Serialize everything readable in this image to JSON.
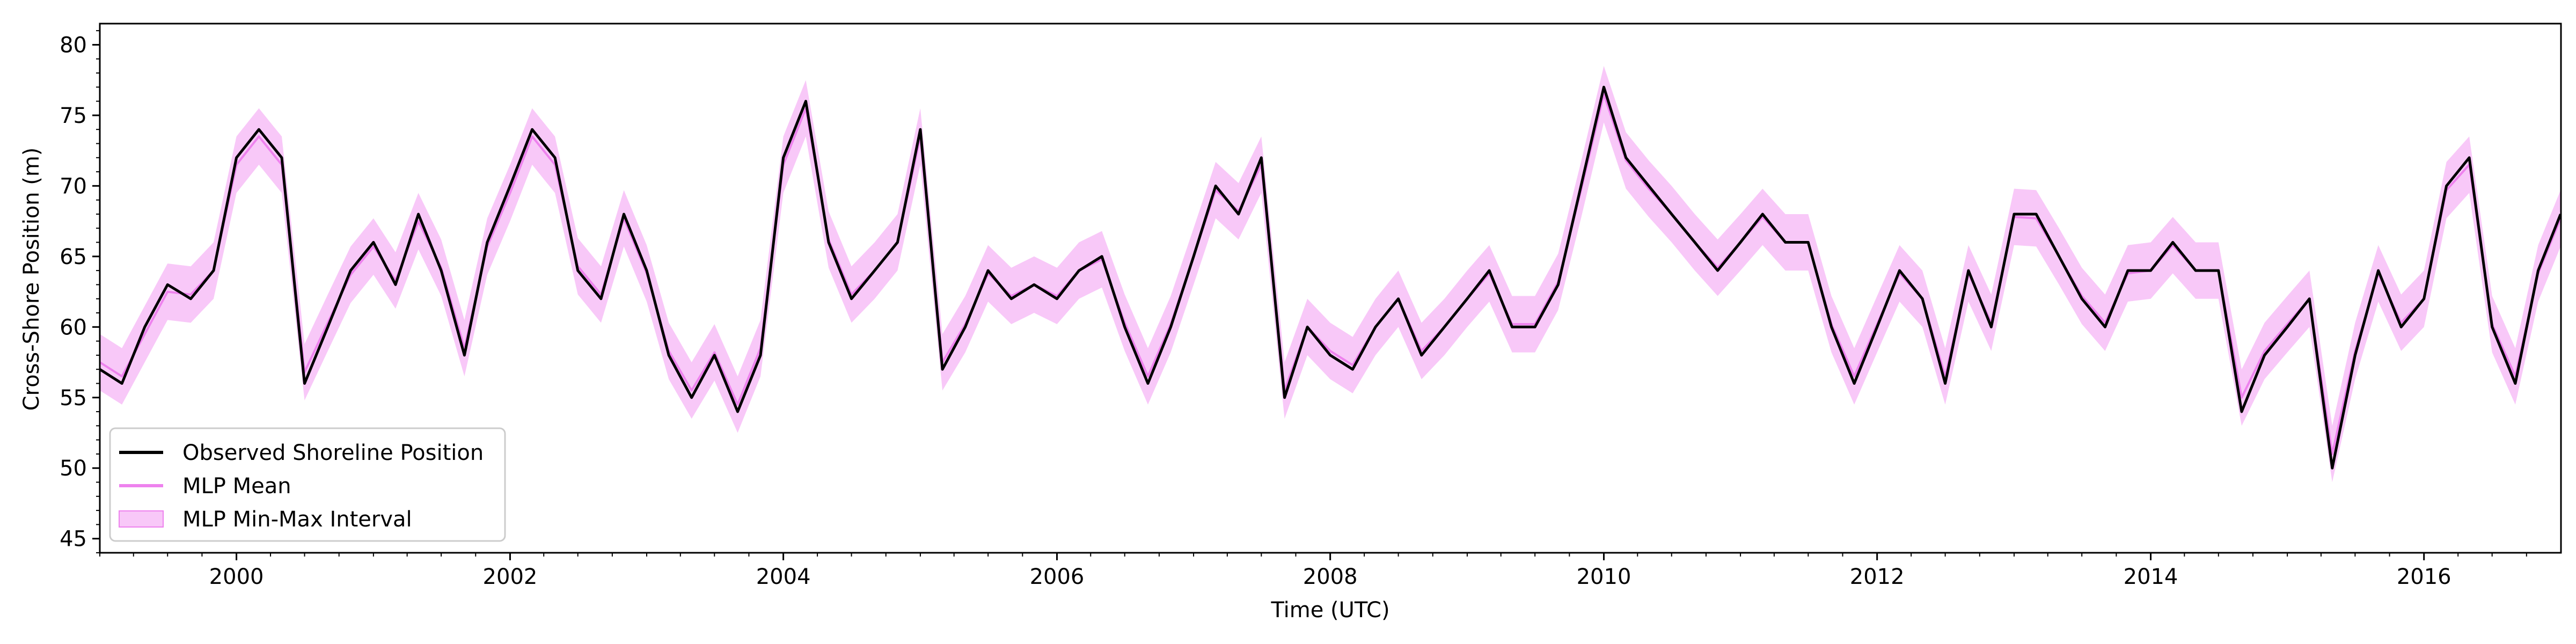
{
  "chart_data": {
    "type": "line",
    "title": "",
    "xlabel": "Time (UTC)",
    "ylabel": "Cross-Shore Position (m)",
    "xlim": [
      "1999-01-01",
      "2017-01-01"
    ],
    "ylim": [
      44,
      81.5
    ],
    "x_ticks": [
      "2000",
      "2002",
      "2004",
      "2006",
      "2008",
      "2010",
      "2012",
      "2014",
      "2016"
    ],
    "y_ticks": [
      "45",
      "50",
      "55",
      "60",
      "65",
      "70",
      "75",
      "80"
    ],
    "grid": false,
    "legend_position": "lower-left",
    "legend": {
      "observed": "Observed Shoreline Position",
      "mean": "MLP Mean",
      "interval": "MLP Min-Max Interval"
    },
    "colors": {
      "observed": "#000000",
      "mean": "#ee82ee",
      "interval_fill": "#f8c8f8",
      "interval_edge": "#ee82ee"
    },
    "x_dates": [
      "1999-01-01",
      "1999-03-01",
      "1999-05-01",
      "1999-07-01",
      "1999-09-01",
      "1999-11-01",
      "2000-01-01",
      "2000-03-01",
      "2000-05-01",
      "2000-07-01",
      "2000-09-01",
      "2000-11-01",
      "2001-01-01",
      "2001-03-01",
      "2001-05-01",
      "2001-07-01",
      "2001-09-01",
      "2001-11-01",
      "2002-01-01",
      "2002-03-01",
      "2002-05-01",
      "2002-07-01",
      "2002-09-01",
      "2002-11-01",
      "2003-01-01",
      "2003-03-01",
      "2003-05-01",
      "2003-07-01",
      "2003-09-01",
      "2003-11-01",
      "2004-01-01",
      "2004-03-01",
      "2004-05-01",
      "2004-07-01",
      "2004-09-01",
      "2004-11-01",
      "2005-01-01",
      "2005-03-01",
      "2005-05-01",
      "2005-07-01",
      "2005-09-01",
      "2005-11-01",
      "2006-01-01",
      "2006-03-01",
      "2006-05-01",
      "2006-07-01",
      "2006-09-01",
      "2006-11-01",
      "2007-01-01",
      "2007-03-01",
      "2007-05-01",
      "2007-07-01",
      "2007-09-01",
      "2007-11-01",
      "2008-01-01",
      "2008-03-01",
      "2008-05-01",
      "2008-07-01",
      "2008-09-01",
      "2008-11-01",
      "2009-01-01",
      "2009-03-01",
      "2009-05-01",
      "2009-07-01",
      "2009-09-01",
      "2009-11-01",
      "2010-01-01",
      "2010-03-01",
      "2010-05-01",
      "2010-07-01",
      "2010-09-01",
      "2010-11-01",
      "2011-01-01",
      "2011-03-01",
      "2011-05-01",
      "2011-07-01",
      "2011-09-01",
      "2011-11-01",
      "2012-01-01",
      "2012-03-01",
      "2012-05-01",
      "2012-07-01",
      "2012-09-01",
      "2012-11-01",
      "2013-01-01",
      "2013-03-01",
      "2013-05-01",
      "2013-07-01",
      "2013-09-01",
      "2013-11-01",
      "2014-01-01",
      "2014-03-01",
      "2014-05-01",
      "2014-07-01",
      "2014-09-01",
      "2014-11-01",
      "2015-01-01",
      "2015-03-01",
      "2015-05-01",
      "2015-07-01",
      "2015-09-01",
      "2015-11-01",
      "2016-01-01",
      "2016-03-01",
      "2016-05-01",
      "2016-07-01",
      "2016-09-01",
      "2016-11-01",
      "2016-12-31"
    ],
    "series": [
      {
        "name": "Observed Shoreline Position",
        "values": [
          57,
          56,
          60,
          63,
          62,
          64,
          72,
          74,
          72,
          56,
          60,
          64,
          66,
          63,
          68,
          64,
          58,
          66,
          70,
          74,
          72,
          64,
          62,
          68,
          64,
          58,
          55,
          58,
          54,
          58,
          72,
          76,
          66,
          62,
          64,
          66,
          74,
          57,
          60,
          64,
          62,
          63,
          62,
          64,
          65,
          60,
          56,
          60,
          65,
          70,
          68,
          72,
          55,
          60,
          58,
          57,
          60,
          62,
          58,
          60,
          62,
          64,
          60,
          60,
          63,
          70,
          77,
          72,
          70,
          68,
          66,
          64,
          66,
          68,
          66,
          66,
          60,
          56,
          60,
          64,
          62,
          56,
          64,
          60,
          68,
          68,
          65,
          62,
          60,
          64,
          64,
          66,
          64,
          64,
          54,
          58,
          60,
          62,
          50,
          58,
          64,
          60,
          62,
          70,
          72,
          60,
          56,
          64,
          68
        ]
      },
      {
        "name": "MLP Mean",
        "values": [
          57.5,
          56.5,
          59.5,
          62.5,
          62.3,
          64,
          71.5,
          73.5,
          71.5,
          56.8,
          60.3,
          63.7,
          65.7,
          63.3,
          67.5,
          64.2,
          58.5,
          65.7,
          69.5,
          73.5,
          71.5,
          64.3,
          62.3,
          67.7,
          63.8,
          58.3,
          55.5,
          58.2,
          54.5,
          58.5,
          71.5,
          75.5,
          66.2,
          62.3,
          64,
          66,
          73.5,
          57.5,
          60.2,
          63.8,
          62.2,
          63,
          62.2,
          64,
          64.8,
          60.3,
          56.5,
          60.2,
          65,
          69.7,
          68.2,
          71.5,
          55.5,
          60,
          58.3,
          57.3,
          60,
          62,
          58.3,
          60,
          62,
          63.8,
          60.2,
          60.2,
          63.2,
          69.7,
          76.5,
          71.8,
          69.8,
          68,
          66,
          64.2,
          66,
          67.8,
          66,
          66,
          60.2,
          56.5,
          60.2,
          63.8,
          62,
          56.5,
          63.8,
          60.3,
          67.8,
          67.7,
          65,
          62.2,
          60.3,
          63.8,
          64,
          65.8,
          64,
          64,
          55,
          58.3,
          60.2,
          62,
          51,
          58.3,
          63.8,
          60.3,
          62,
          69.7,
          71.5,
          60.2,
          56.5,
          63.8,
          67.7
        ]
      },
      {
        "name": "MLP Min-Max Interval",
        "lower": [
          55.5,
          54.5,
          57.5,
          60.5,
          60.3,
          62,
          69.5,
          71.5,
          69.5,
          54.8,
          58.3,
          61.7,
          63.7,
          61.3,
          65.5,
          62.2,
          56.5,
          63.7,
          67.5,
          71.5,
          69.5,
          62.3,
          60.3,
          65.7,
          61.8,
          56.3,
          53.5,
          56.2,
          52.5,
          56.5,
          69.5,
          73.5,
          64.2,
          60.3,
          62,
          64,
          71.5,
          55.5,
          58.2,
          61.8,
          60.2,
          61,
          60.2,
          62,
          62.8,
          58.3,
          54.5,
          58.2,
          63,
          67.7,
          66.2,
          69.5,
          53.5,
          58,
          56.3,
          55.3,
          58,
          60,
          56.3,
          58,
          60,
          61.8,
          58.2,
          58.2,
          61.2,
          67.7,
          74.5,
          69.8,
          67.8,
          66,
          64,
          62.2,
          64,
          65.8,
          64,
          64,
          58.2,
          54.5,
          58.2,
          61.8,
          60,
          54.5,
          61.8,
          58.3,
          65.8,
          65.7,
          63,
          60.2,
          58.3,
          61.8,
          62,
          63.8,
          62,
          62,
          53,
          56.3,
          58.2,
          60,
          49,
          56.3,
          61.8,
          58.3,
          60,
          67.7,
          69.5,
          58.2,
          54.5,
          61.8,
          65.7
        ],
        "upper": [
          59.5,
          58.5,
          61.5,
          64.5,
          64.3,
          66,
          73.5,
          75.5,
          73.5,
          58.8,
          62.3,
          65.7,
          67.7,
          65.3,
          69.5,
          66.2,
          60.5,
          67.7,
          71.5,
          75.5,
          73.5,
          66.3,
          64.3,
          69.7,
          65.8,
          60.3,
          57.5,
          60.2,
          56.5,
          60.5,
          73.5,
          77.5,
          68.2,
          64.3,
          66,
          68,
          75.5,
          59.5,
          62.2,
          65.8,
          64.2,
          65,
          64.2,
          66,
          66.8,
          62.3,
          58.5,
          62.2,
          67,
          71.7,
          70.2,
          73.5,
          57.5,
          62,
          60.3,
          59.3,
          62,
          64,
          60.3,
          62,
          64,
          65.8,
          62.2,
          62.2,
          65.2,
          71.7,
          78.5,
          73.8,
          71.8,
          70,
          68,
          66.2,
          68,
          69.8,
          68,
          68,
          62.2,
          58.5,
          62.2,
          65.8,
          64,
          58.5,
          65.8,
          62.3,
          69.8,
          69.7,
          67,
          64.2,
          62.3,
          65.8,
          66,
          67.8,
          66,
          66,
          57,
          60.3,
          62.2,
          64,
          53,
          60.3,
          65.8,
          62.3,
          64,
          71.7,
          73.5,
          62.2,
          58.5,
          65.8,
          69.7
        ]
      }
    ]
  }
}
